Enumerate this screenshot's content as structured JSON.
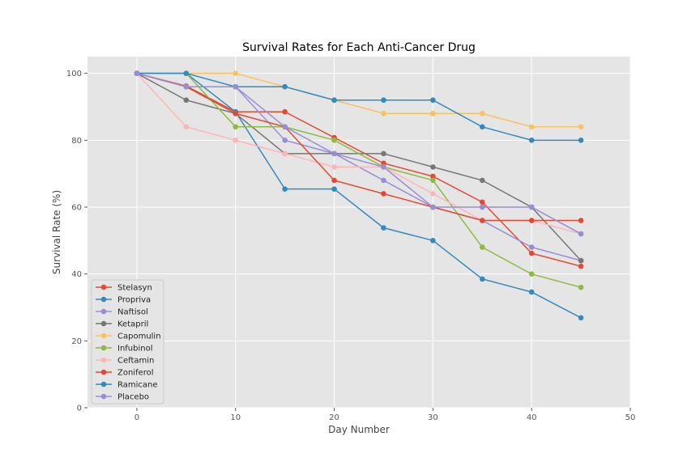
{
  "chart_data": {
    "type": "line",
    "title": "Survival Rates for Each Anti-Cancer Drug",
    "xlabel": "Day Number",
    "ylabel": "Survival Rate (%)",
    "xlim": [
      -5,
      50
    ],
    "ylim": [
      0,
      105
    ],
    "xticks": [
      "0",
      "10",
      "20",
      "30",
      "40",
      "50"
    ],
    "yticks": [
      "0",
      "20",
      "40",
      "60",
      "80",
      "100"
    ],
    "grid": true,
    "legend_position": "lower-left",
    "x": [
      0,
      5,
      10,
      15,
      20,
      25,
      30,
      35,
      40,
      45
    ],
    "series": [
      {
        "name": "Stelasyn",
        "color": "#E24A33",
        "values": [
          100,
          96.2,
          88.5,
          88.5,
          80.8,
          73.1,
          69.2,
          61.5,
          46.2,
          42.3
        ]
      },
      {
        "name": "Propriva",
        "color": "#348ABD",
        "values": [
          100,
          100,
          88.5,
          65.4,
          65.4,
          53.8,
          50.0,
          38.5,
          34.6,
          26.9
        ]
      },
      {
        "name": "Naftisol",
        "color": "#988ED5",
        "values": [
          100,
          96,
          96,
          80,
          76,
          68,
          60,
          56,
          48,
          44
        ]
      },
      {
        "name": "Ketapril",
        "color": "#777777",
        "values": [
          100,
          92,
          88,
          76,
          76,
          76,
          72,
          68,
          60,
          44
        ]
      },
      {
        "name": "Capomulin",
        "color": "#FBC15E",
        "values": [
          100,
          100,
          100,
          96,
          92,
          88,
          88,
          88,
          84,
          84
        ]
      },
      {
        "name": "Infubinol",
        "color": "#8EBA42",
        "values": [
          100,
          100,
          84,
          84,
          80,
          72,
          68,
          48,
          40,
          36
        ]
      },
      {
        "name": "Ceftamin",
        "color": "#FFB5B8",
        "values": [
          100,
          84,
          80,
          76,
          72,
          72,
          64,
          56,
          56,
          52
        ]
      },
      {
        "name": "Zoniferol",
        "color": "#E24A33",
        "values": [
          100,
          96,
          88,
          84,
          68,
          64,
          60,
          56,
          56,
          56
        ]
      },
      {
        "name": "Ramicane",
        "color": "#348ABD",
        "values": [
          100,
          100,
          96,
          96,
          92,
          92,
          92,
          84,
          80,
          80
        ]
      },
      {
        "name": "Placebo",
        "color": "#988ED5",
        "values": [
          100,
          96,
          96,
          84,
          76,
          72,
          60,
          60,
          60,
          52
        ]
      }
    ]
  }
}
